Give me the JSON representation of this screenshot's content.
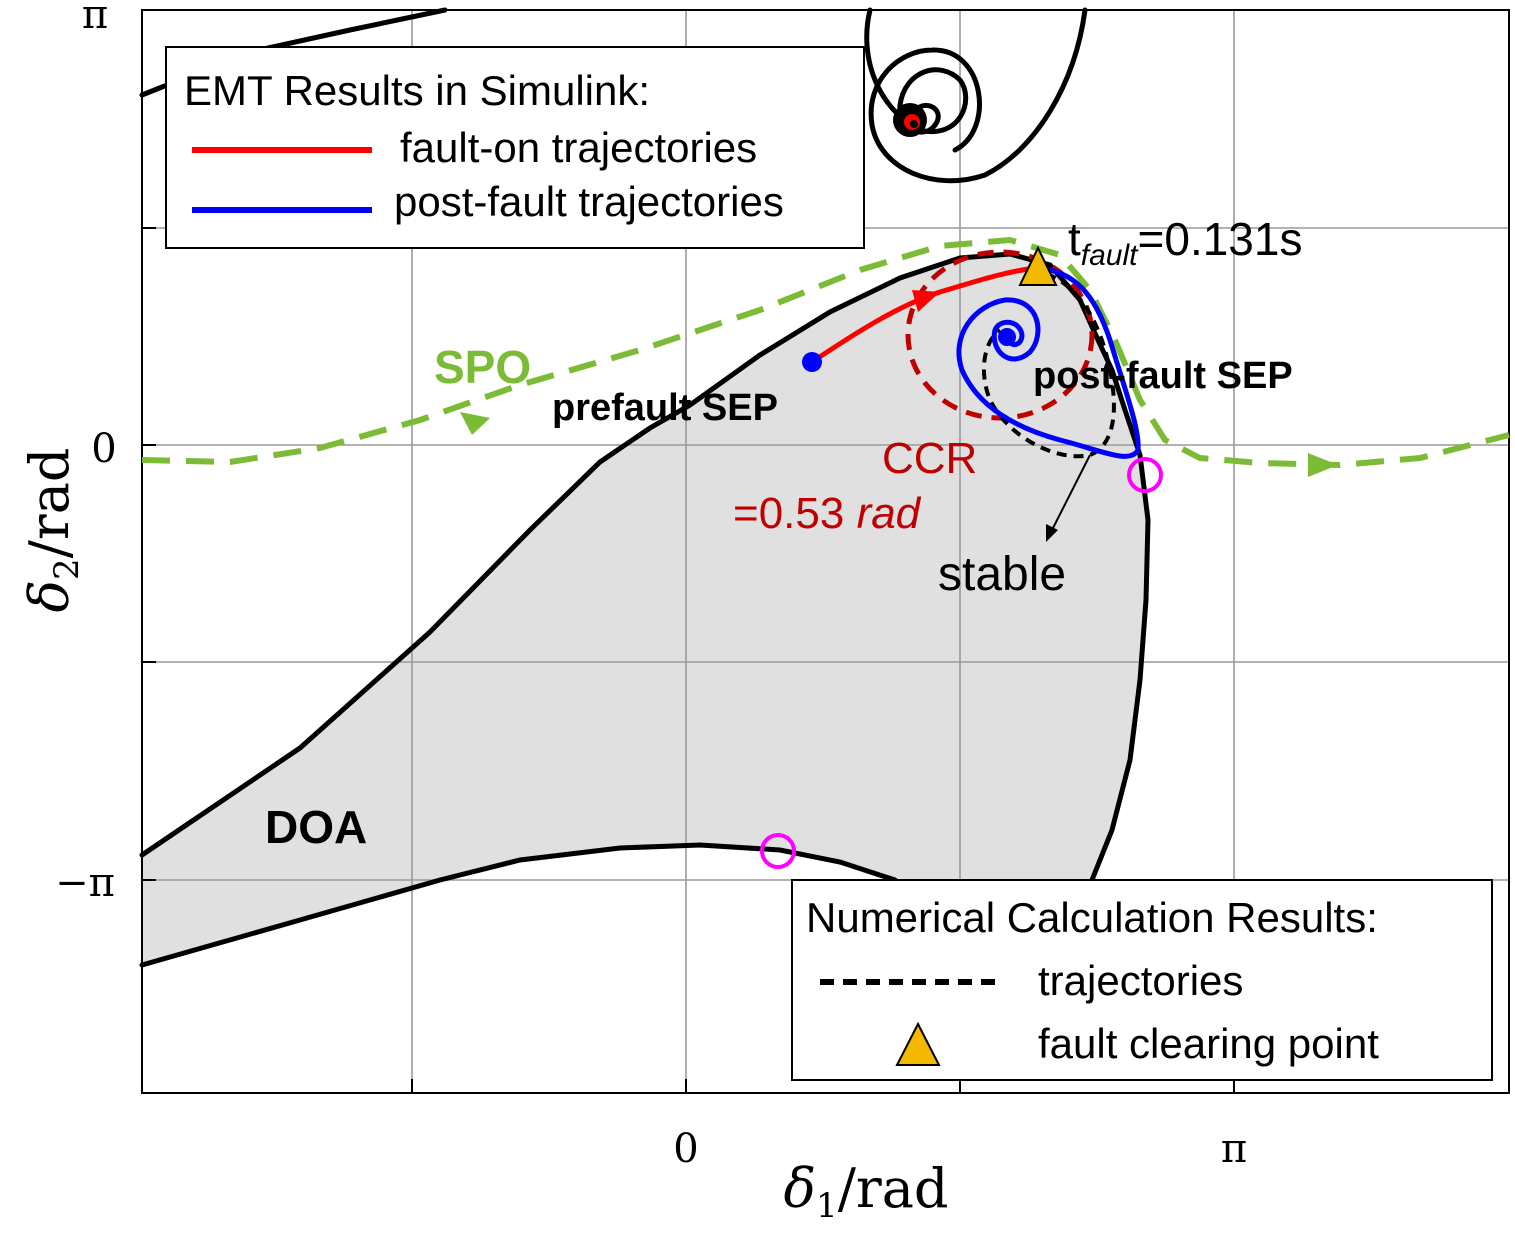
{
  "chart_data": {
    "type": "line",
    "xlabel": {
      "symbol": "δ",
      "sub": "1",
      "unit": "/rad"
    },
    "ylabel": {
      "symbol": "δ",
      "sub": "2",
      "unit": "/rad"
    },
    "xlim": [
      -2.45,
      4.93
    ],
    "ylim": [
      -4.63,
      3.93
    ],
    "x_ticks": [
      {
        "value": 0,
        "label": "0"
      },
      {
        "value": 3.1416,
        "label": "π"
      }
    ],
    "y_ticks": [
      {
        "value": 3.1416,
        "label": "π"
      },
      {
        "value": 0,
        "label": "0"
      },
      {
        "value": -3.1416,
        "label": "−π"
      }
    ],
    "grid": true,
    "legend_top": {
      "title": "EMT Results in Simulink:",
      "entries": [
        {
          "label": "fault-on trajectories",
          "color": "#ff0000",
          "style": "solid"
        },
        {
          "label": "post-fault trajectories",
          "color": "#0000ff",
          "style": "solid"
        }
      ]
    },
    "legend_bottom": {
      "title": "Numerical Calculation Results:",
      "entries": [
        {
          "label": "trajectories",
          "color": "#000000",
          "style": "dashed"
        },
        {
          "label": "fault clearing point",
          "color": "#f5b800",
          "style": "triangle"
        }
      ]
    },
    "annotations": {
      "tfault_main": "t",
      "tfault_sub": "fault",
      "tfault_val": "=0.131s",
      "post_sep": "post-fault SEP",
      "prefault_sep": "prefault SEP",
      "spo": "SPO",
      "ccr_line1": "CCR",
      "ccr_line2_val": "=0.53 ",
      "ccr_line2_unit": "rad",
      "stable": "stable",
      "doa": "DOA"
    },
    "colors": {
      "doa_fill": "#e0e0e0",
      "spo": "#7cbb35",
      "ccr": "#c00000",
      "marker_circles": "#ff00ff",
      "fault_point": "#f5b800"
    },
    "series": [
      {
        "name": "fault-on trajectories",
        "color": "#ff0000",
        "x": [
          0.41,
          0.6,
          0.8,
          1.0,
          1.2,
          1.45,
          1.7,
          1.95,
          2.15,
          2.35,
          2.55,
          2.8
        ],
        "y": [
          1.13,
          1.3,
          1.46,
          1.6,
          1.75,
          1.92,
          2.05,
          2.17,
          2.28,
          2.34,
          2.4,
          2.5
        ]
      },
      {
        "name": "post-fault trajectories",
        "color": "#0000ff",
        "x": [
          2.8,
          3.0,
          3.1,
          3.25,
          3.35,
          3.4,
          3.42,
          3.38,
          3.25,
          2.95,
          2.6,
          2.32,
          2.2,
          2.18,
          2.2,
          2.3,
          2.45,
          2.6,
          2.72,
          2.78,
          2.76,
          2.65,
          2.56,
          2.55,
          2.58,
          2.66,
          2.7,
          2.66,
          2.6,
          2.6,
          2.64
        ],
        "y": [
          2.5,
          2.42,
          2.3,
          1.9,
          1.3,
          0.7,
          0.15,
          -0.07,
          -0.05,
          0.15,
          0.52,
          0.9,
          1.25,
          1.55,
          1.85,
          2.05,
          2.1,
          2.02,
          1.8,
          1.55,
          1.35,
          1.3,
          1.45,
          1.68,
          1.85,
          1.82,
          1.63,
          1.5,
          1.55,
          1.65,
          1.7
        ]
      },
      {
        "name": "",
        "color": "#000000",
        "style": "dashed",
        "x": [
          2.8,
          2.98,
          3.1,
          3.18,
          3.2,
          3.1,
          2.92,
          2.72,
          2.55,
          2.48,
          2.5,
          2.6
        ],
        "y": [
          2.45,
          2.35,
          2.1,
          1.55,
          0.95,
          0.35,
          0.03,
          -0.03,
          0.4,
          0.9,
          1.4,
          1.75
        ]
      },
      {
        "name": "",
        "color": "#c00000",
        "style": "dashed",
        "x": [
          2.85,
          3.0,
          3.0,
          2.88,
          2.6,
          2.3,
          1.95,
          1.74,
          1.77,
          2.0,
          2.3,
          2.6,
          2.85
        ],
        "y": [
          2.45,
          2.2,
          1.7,
          1.2,
          0.62,
          0.42,
          0.62,
          1.15,
          1.7,
          2.15,
          2.45,
          2.6,
          2.45
        ]
      },
      {
        "name": "",
        "color": "#7cbb35",
        "style": "dashed",
        "x": [
          -2.45,
          -1.8,
          -1.0,
          -0.2,
          0.6,
          1.4,
          2.0,
          2.5,
          2.85,
          3.12,
          3.28,
          3.4,
          3.55,
          3.8,
          4.2,
          4.6,
          4.93
        ],
        "y": [
          -0.2,
          -0.17,
          0.1,
          0.62,
          1.12,
          1.6,
          2.1,
          2.6,
          2.65,
          2.35,
          1.75,
          0.8,
          0.1,
          -0.25,
          -0.27,
          -0.2,
          0.12
        ]
      }
    ],
    "points": [
      {
        "label": "prefault SEP",
        "x": 0.41,
        "y": 1.13,
        "color": "#0000ff"
      },
      {
        "label": "post-fault SEP",
        "x": 2.64,
        "y": 1.68,
        "color": "#0000ff"
      },
      {
        "label": "fault clearing point",
        "x": 2.8,
        "y": 2.5,
        "color": "#f5b800",
        "marker": "triangle"
      },
      {
        "label": "",
        "x": 3.48,
        "y": -0.25,
        "color": "#ff00ff",
        "marker": "circle"
      },
      {
        "label": "",
        "x": 0.75,
        "y": -2.92,
        "color": "#ff00ff",
        "marker": "circle"
      }
    ]
  }
}
